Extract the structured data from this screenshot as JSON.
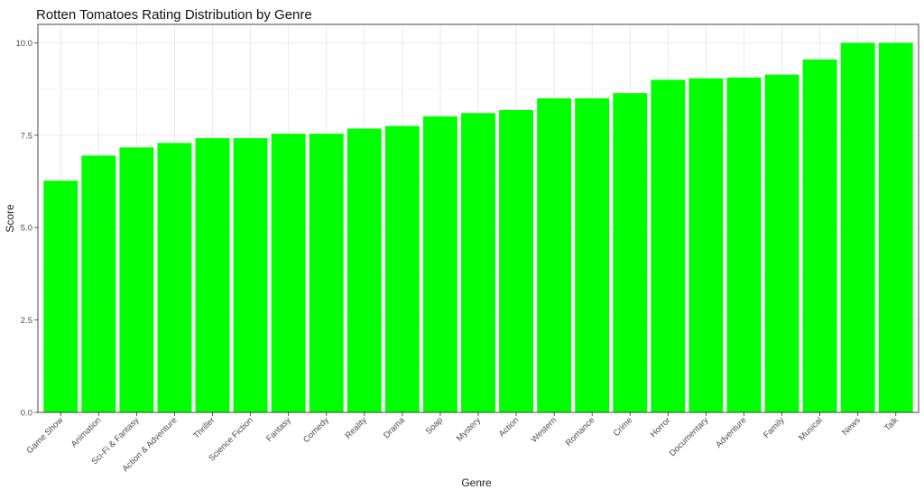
{
  "chart_data": {
    "type": "bar",
    "title": "Rotten Tomatoes Rating Distribution by Genre",
    "xlabel": "Genre",
    "ylabel": "Score",
    "categories": [
      "Game Show",
      "Animation",
      "Sci-Fi & Fantasy",
      "Action & Adventure",
      "Thriller",
      "Science Fiction",
      "Fantasy",
      "Comedy",
      "Reality",
      "Drama",
      "Soap",
      "Mystery",
      "Action",
      "Western",
      "Romance",
      "Crime",
      "Horror",
      "Documentary",
      "Adventure",
      "Family",
      "Musical",
      "News",
      "Talk"
    ],
    "values": [
      6.27,
      6.95,
      7.17,
      7.29,
      7.42,
      7.42,
      7.54,
      7.54,
      7.68,
      7.75,
      8.01,
      8.1,
      8.18,
      8.5,
      8.5,
      8.64,
      9.0,
      9.04,
      9.06,
      9.14,
      9.55,
      10.0,
      10.0
    ],
    "ylim": [
      0,
      10.5
    ],
    "yticks": [
      0,
      2.5,
      5,
      7.5,
      10
    ],
    "ytick_labels": [
      "0.0",
      "2.5",
      "5.0",
      "7.5",
      "10.0"
    ],
    "bar_color": "#00ff00",
    "grid": true,
    "legend": "none"
  }
}
